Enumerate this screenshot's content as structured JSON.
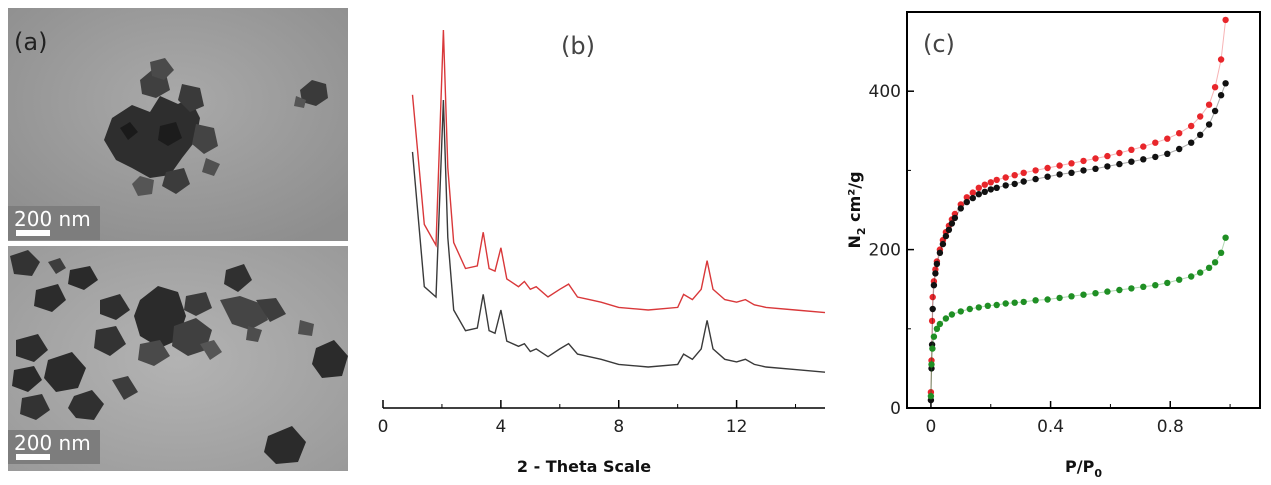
{
  "panel_a": {
    "label": "(a)",
    "scalebar_top": "200 nm",
    "scalebar_bottom": "200 nm"
  },
  "chart_data": [
    {
      "type": "line",
      "panel_label": "(b)",
      "xlabel": "2 - Theta Scale",
      "ylabel": "",
      "xlim": [
        0,
        15
      ],
      "x_ticks": [
        "0",
        "4",
        "8",
        "12"
      ],
      "y_ticks": [],
      "colors": {
        "upper": "#d9383a",
        "lower": "#3a3a3a"
      },
      "series": [
        {
          "color": "upper",
          "x": [
            1.0,
            1.4,
            1.8,
            2.05,
            2.2,
            2.4,
            2.8,
            3.2,
            3.4,
            3.6,
            3.8,
            4.0,
            4.2,
            4.6,
            4.8,
            5.0,
            5.2,
            5.6,
            6.0,
            6.3,
            6.6,
            7.0,
            7.4,
            8.0,
            9.0,
            10.0,
            10.2,
            10.5,
            10.8,
            11.0,
            11.2,
            11.6,
            12.0,
            12.3,
            12.6,
            13.0,
            14.0,
            15.0
          ],
          "y": [
            1.0,
            0.5,
            0.42,
            1.25,
            0.72,
            0.43,
            0.33,
            0.34,
            0.47,
            0.33,
            0.32,
            0.41,
            0.29,
            0.26,
            0.28,
            0.25,
            0.26,
            0.22,
            0.25,
            0.27,
            0.22,
            0.21,
            0.2,
            0.18,
            0.17,
            0.18,
            0.23,
            0.21,
            0.25,
            0.36,
            0.25,
            0.21,
            0.2,
            0.21,
            0.19,
            0.18,
            0.17,
            0.16
          ]
        },
        {
          "color": "lower",
          "x": [
            1.0,
            1.4,
            1.8,
            2.05,
            2.2,
            2.4,
            2.8,
            3.2,
            3.4,
            3.6,
            3.8,
            4.0,
            4.2,
            4.6,
            4.8,
            5.0,
            5.2,
            5.6,
            6.0,
            6.3,
            6.6,
            7.0,
            7.4,
            8.0,
            9.0,
            10.0,
            10.2,
            10.5,
            10.8,
            11.0,
            11.2,
            11.6,
            12.0,
            12.3,
            12.6,
            13.0,
            14.0,
            15.0
          ],
          "y": [
            0.78,
            0.26,
            0.22,
            0.98,
            0.45,
            0.17,
            0.09,
            0.1,
            0.23,
            0.09,
            0.08,
            0.17,
            0.05,
            0.03,
            0.04,
            0.01,
            0.02,
            -0.01,
            0.02,
            0.04,
            0.0,
            -0.01,
            -0.02,
            -0.04,
            -0.05,
            -0.04,
            0.0,
            -0.02,
            0.02,
            0.13,
            0.02,
            -0.02,
            -0.03,
            -0.02,
            -0.04,
            -0.05,
            -0.06,
            -0.07
          ]
        }
      ]
    },
    {
      "type": "scatter",
      "panel_label": "(c)",
      "xlabel": "P/P",
      "xlabel_sub": "0",
      "ylabel": "N",
      "ylabel_sub": "2",
      "ylabel_rest": " cm²/g",
      "xlim": [
        -0.08,
        1.1
      ],
      "ylim": [
        0,
        500
      ],
      "x_ticks": [
        0,
        0.4,
        0.8
      ],
      "x_tick_labels": [
        "0",
        "0.4",
        "0.8"
      ],
      "y_ticks": [
        0,
        200,
        400
      ],
      "y_tick_labels": [
        "0",
        "200",
        "400"
      ],
      "colors": {
        "red": "#e8262b",
        "black": "#111111",
        "green": "#1f8f24"
      },
      "series": [
        {
          "color": "red",
          "x": [
            0.0,
            0.002,
            0.004,
            0.006,
            0.01,
            0.015,
            0.02,
            0.03,
            0.04,
            0.05,
            0.06,
            0.07,
            0.08,
            0.1,
            0.12,
            0.14,
            0.16,
            0.18,
            0.2,
            0.22,
            0.25,
            0.28,
            0.31,
            0.35,
            0.39,
            0.43,
            0.47,
            0.51,
            0.55,
            0.59,
            0.63,
            0.67,
            0.71,
            0.75,
            0.79,
            0.83,
            0.87,
            0.9,
            0.93,
            0.95,
            0.97,
            0.985
          ],
          "y": [
            20,
            60,
            110,
            140,
            160,
            175,
            185,
            200,
            212,
            222,
            230,
            238,
            245,
            257,
            266,
            272,
            278,
            282,
            285,
            288,
            291,
            294,
            297,
            300,
            303,
            306,
            309,
            312,
            315,
            318,
            322,
            326,
            330,
            335,
            340,
            347,
            356,
            368,
            383,
            405,
            440,
            490
          ]
        },
        {
          "color": "black",
          "x": [
            0.0,
            0.002,
            0.004,
            0.006,
            0.01,
            0.015,
            0.02,
            0.03,
            0.04,
            0.05,
            0.06,
            0.07,
            0.08,
            0.1,
            0.12,
            0.14,
            0.16,
            0.18,
            0.2,
            0.22,
            0.25,
            0.28,
            0.31,
            0.35,
            0.39,
            0.43,
            0.47,
            0.51,
            0.55,
            0.59,
            0.63,
            0.67,
            0.71,
            0.75,
            0.79,
            0.83,
            0.87,
            0.9,
            0.93,
            0.95,
            0.97,
            0.985
          ],
          "y": [
            10,
            50,
            80,
            125,
            155,
            170,
            182,
            196,
            207,
            217,
            225,
            233,
            240,
            252,
            260,
            265,
            270,
            273,
            276,
            278,
            281,
            283,
            286,
            289,
            292,
            295,
            297,
            300,
            302,
            305,
            308,
            311,
            314,
            317,
            321,
            327,
            335,
            345,
            358,
            375,
            395,
            410
          ]
        },
        {
          "color": "green",
          "x": [
            0.0,
            0.002,
            0.005,
            0.01,
            0.02,
            0.03,
            0.05,
            0.07,
            0.1,
            0.13,
            0.16,
            0.19,
            0.22,
            0.25,
            0.28,
            0.31,
            0.35,
            0.39,
            0.43,
            0.47,
            0.51,
            0.55,
            0.59,
            0.63,
            0.67,
            0.71,
            0.75,
            0.79,
            0.83,
            0.87,
            0.9,
            0.93,
            0.95,
            0.97,
            0.985
          ],
          "y": [
            15,
            55,
            75,
            90,
            100,
            106,
            113,
            118,
            122,
            125,
            127,
            129,
            130,
            132,
            133,
            134,
            136,
            137,
            139,
            141,
            143,
            145,
            147,
            149,
            151,
            153,
            155,
            158,
            162,
            166,
            171,
            177,
            184,
            196,
            215
          ]
        }
      ]
    }
  ]
}
